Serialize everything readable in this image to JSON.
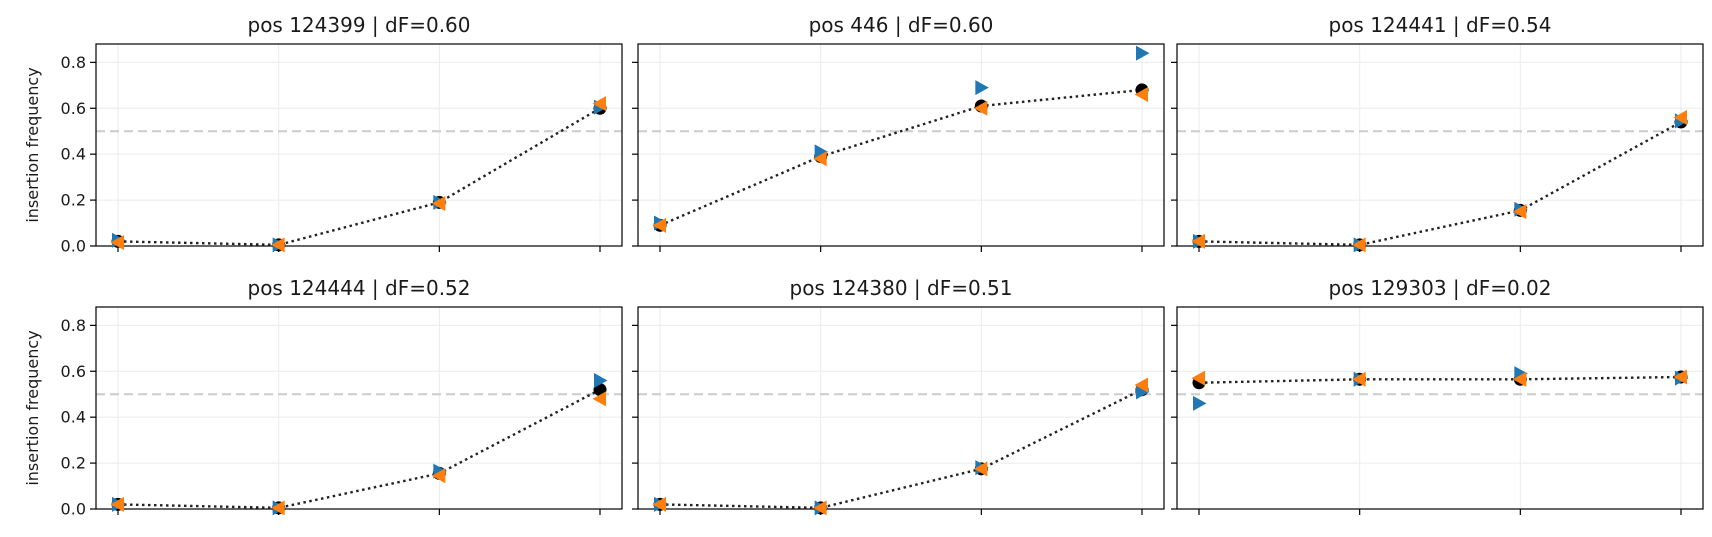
{
  "chart_data": [
    {
      "type": "scatter",
      "title": "pos 124399  |  dF=0.60",
      "ylabel": "insertion frequency",
      "ylim": [
        0,
        0.88
      ],
      "yticks": [
        "0.0",
        "0.2",
        "0.4",
        "0.6",
        "0.8"
      ],
      "x": [
        1,
        2,
        3,
        4
      ],
      "threshold": 0.5,
      "grid": true,
      "series": [
        {
          "marker": "circle",
          "color": "#000000",
          "values": [
            0.02,
            0.005,
            0.19,
            0.6
          ]
        },
        {
          "marker": "triangle-right",
          "color": "#1f77b4",
          "values": [
            0.025,
            0.005,
            0.19,
            0.605
          ]
        },
        {
          "marker": "triangle-left",
          "color": "#ff7f0e",
          "values": [
            0.015,
            0.005,
            0.185,
            0.62
          ]
        }
      ]
    },
    {
      "type": "scatter",
      "title": "pos 446  |  dF=0.60",
      "ylabel": "",
      "ylim": [
        0,
        0.88
      ],
      "yticks": [
        "0.0",
        "0.2",
        "0.4",
        "0.6",
        "0.8"
      ],
      "x": [
        1,
        2,
        3,
        4
      ],
      "threshold": 0.5,
      "grid": true,
      "series": [
        {
          "marker": "circle",
          "color": "#000000",
          "values": [
            0.09,
            0.39,
            0.61,
            0.68
          ]
        },
        {
          "marker": "triangle-right",
          "color": "#1f77b4",
          "values": [
            0.1,
            0.41,
            0.69,
            0.84
          ]
        },
        {
          "marker": "triangle-left",
          "color": "#ff7f0e",
          "values": [
            0.09,
            0.38,
            0.6,
            0.66
          ]
        }
      ]
    },
    {
      "type": "scatter",
      "title": "pos 124441  |  dF=0.54",
      "ylabel": "",
      "ylim": [
        0,
        0.88
      ],
      "yticks": [
        "0.0",
        "0.2",
        "0.4",
        "0.6",
        "0.8"
      ],
      "x": [
        1,
        2,
        3,
        4
      ],
      "threshold": 0.5,
      "grid": true,
      "series": [
        {
          "marker": "circle",
          "color": "#000000",
          "values": [
            0.02,
            0.005,
            0.155,
            0.54
          ]
        },
        {
          "marker": "triangle-right",
          "color": "#1f77b4",
          "values": [
            0.02,
            0.005,
            0.16,
            0.545
          ]
        },
        {
          "marker": "triangle-left",
          "color": "#ff7f0e",
          "values": [
            0.02,
            0.005,
            0.15,
            0.56
          ]
        }
      ]
    },
    {
      "type": "scatter",
      "title": "pos 124444  |  dF=0.52",
      "ylabel": "insertion frequency",
      "ylim": [
        0,
        0.88
      ],
      "yticks": [
        "0.0",
        "0.2",
        "0.4",
        "0.6",
        "0.8"
      ],
      "x": [
        1,
        2,
        3,
        4
      ],
      "threshold": 0.5,
      "grid": true,
      "series": [
        {
          "marker": "circle",
          "color": "#000000",
          "values": [
            0.02,
            0.005,
            0.155,
            0.52
          ]
        },
        {
          "marker": "triangle-right",
          "color": "#1f77b4",
          "values": [
            0.02,
            0.005,
            0.165,
            0.56
          ]
        },
        {
          "marker": "triangle-left",
          "color": "#ff7f0e",
          "values": [
            0.02,
            0.005,
            0.145,
            0.48
          ]
        }
      ]
    },
    {
      "type": "scatter",
      "title": "pos 124380  |  dF=0.51",
      "ylabel": "",
      "ylim": [
        0,
        0.88
      ],
      "yticks": [
        "0.0",
        "0.2",
        "0.4",
        "0.6",
        "0.8"
      ],
      "x": [
        1,
        2,
        3,
        4
      ],
      "threshold": 0.5,
      "grid": true,
      "series": [
        {
          "marker": "circle",
          "color": "#000000",
          "values": [
            0.02,
            0.005,
            0.175,
            0.52
          ]
        },
        {
          "marker": "triangle-right",
          "color": "#1f77b4",
          "values": [
            0.02,
            0.005,
            0.18,
            0.51
          ]
        },
        {
          "marker": "triangle-left",
          "color": "#ff7f0e",
          "values": [
            0.02,
            0.005,
            0.175,
            0.54
          ]
        }
      ]
    },
    {
      "type": "scatter",
      "title": "pos 129303  |  dF=0.02",
      "ylabel": "",
      "ylim": [
        0,
        0.88
      ],
      "yticks": [
        "0.0",
        "0.2",
        "0.4",
        "0.6",
        "0.8"
      ],
      "x": [
        1,
        2,
        3,
        4
      ],
      "threshold": 0.5,
      "grid": true,
      "series": [
        {
          "marker": "circle",
          "color": "#000000",
          "values": [
            0.55,
            0.565,
            0.565,
            0.575
          ]
        },
        {
          "marker": "triangle-right",
          "color": "#1f77b4",
          "values": [
            0.46,
            0.565,
            0.59,
            0.57
          ]
        },
        {
          "marker": "triangle-left",
          "color": "#ff7f0e",
          "values": [
            0.57,
            0.565,
            0.565,
            0.575
          ]
        }
      ]
    }
  ]
}
